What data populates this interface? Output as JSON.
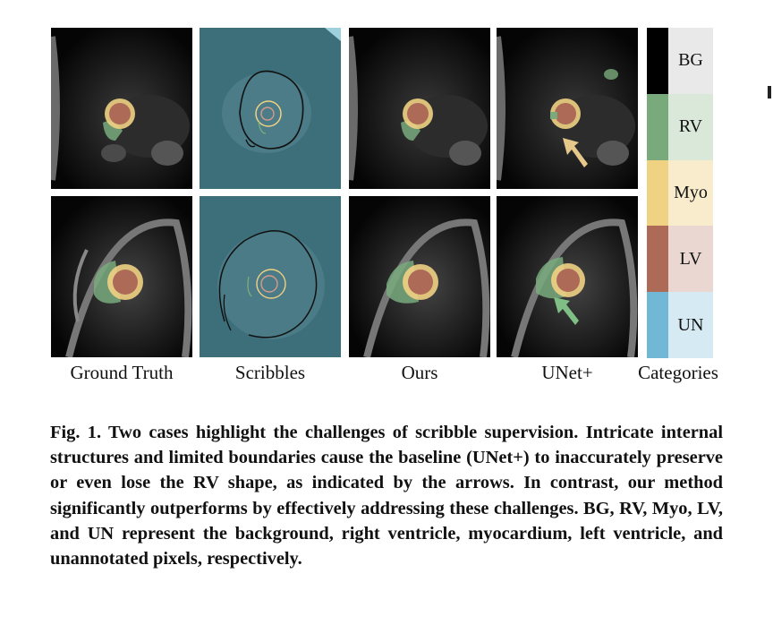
{
  "columns": [
    {
      "label": "Ground Truth"
    },
    {
      "label": "Scribbles"
    },
    {
      "label": "Ours"
    },
    {
      "label": "UNet+"
    },
    {
      "label": "Categories"
    }
  ],
  "legend": [
    {
      "label": "BG",
      "color": "#000000",
      "bg": "#e9e9e9"
    },
    {
      "label": "RV",
      "color": "#79aa7c",
      "bg": "#d9e8d9"
    },
    {
      "label": "Myo",
      "color": "#f0d283",
      "bg": "#f8eccd"
    },
    {
      "label": "LV",
      "color": "#ad6a57",
      "bg": "#ead7d2"
    },
    {
      "label": "UN",
      "color": "#70b8d6",
      "bg": "#d6eaf3"
    }
  ],
  "arrow_colors": {
    "unet_top": "#e6c98a",
    "unet_bottom": "#7fbf86"
  },
  "caption": {
    "lead": "Fig. 1.",
    "text": " Two cases highlight the challenges of scribble supervision. Intricate internal structures and limited boundaries cause the baseline (UNet+) to inaccurately preserve or even lose the RV shape, as indicated by the arrows. In contrast, our method significantly outperforms by effectively addressing these challenges. BG, RV, Myo, LV, and UN represent the background, right ventricle, myocardium, left ventricle, and unannotated pixels, respectively."
  }
}
